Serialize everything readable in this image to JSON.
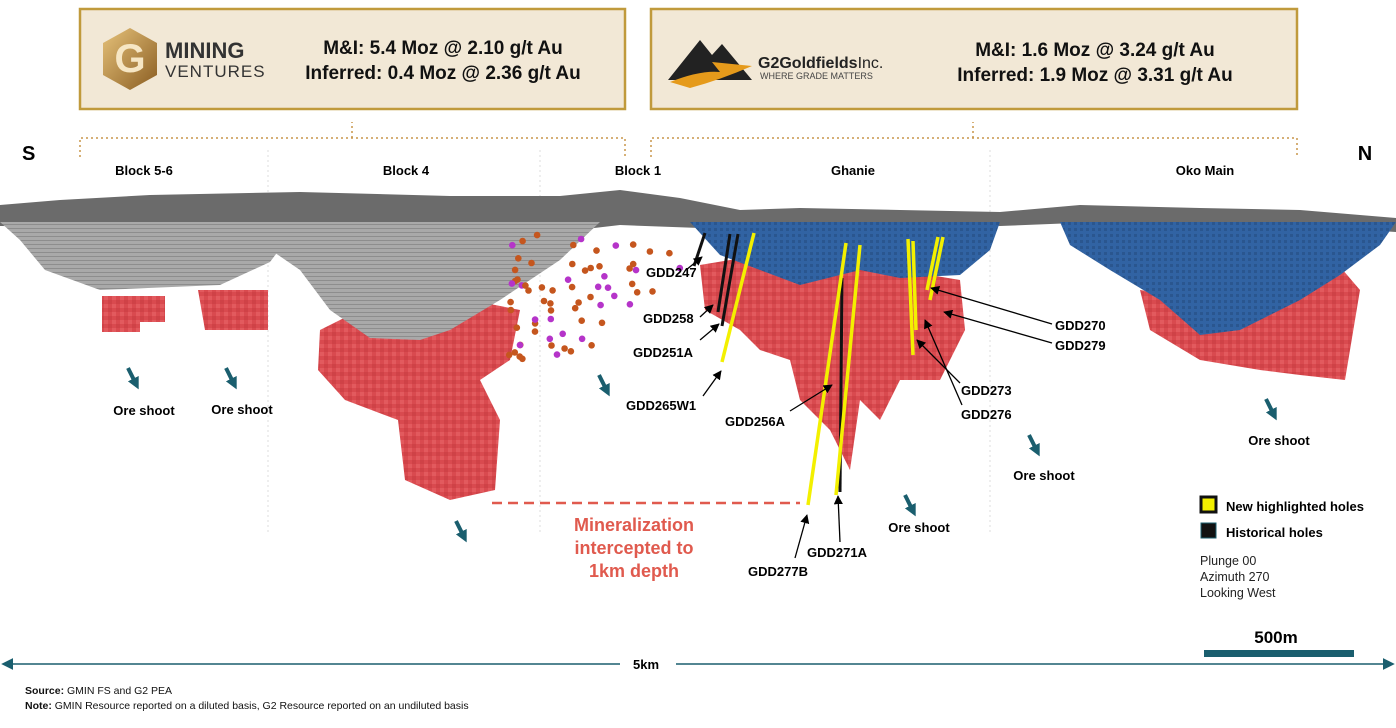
{
  "header": {
    "left": {
      "logo": {
        "mark": "G",
        "line1": "MINING",
        "line2": "VENTURES"
      },
      "mi": "M&I: 5.4 Moz @ 2.10 g/t Au",
      "inferred": "Inferred: 0.4 Moz @ 2.36 g/t Au"
    },
    "right": {
      "logo": {
        "name": "G2Goldfields",
        "suffix": "Inc.",
        "tagline": "WHERE GRADE MATTERS"
      },
      "mi": "M&I: 1.6 Moz @ 3.24 g/t Au",
      "inferred": "Inferred: 1.9 Moz @ 3.31 g/t Au"
    }
  },
  "directions": {
    "left": "S",
    "right": "N"
  },
  "sections": [
    "Block 5-6",
    "Block 4",
    "Block 1",
    "Ghanie",
    "Oko Main"
  ],
  "holes": [
    "GDD247",
    "GDD258",
    "GDD251A",
    "GDD265W1",
    "GDD256A",
    "GDD277B",
    "GDD271A",
    "GDD270",
    "GDD279",
    "GDD273",
    "GDD276"
  ],
  "ore_shoots": [
    "Ore shoot",
    "Ore shoot",
    "Ore shoot",
    "Ore shoot",
    "Ore shoot"
  ],
  "annotation": [
    "Mineralization",
    "intercepted to",
    "1km depth"
  ],
  "legend": [
    "New highlighted holes",
    "Historical holes"
  ],
  "view": [
    "Plunge 00",
    "Azimuth 270",
    "Looking West"
  ],
  "scale": {
    "bar": "500m",
    "width": "5km"
  },
  "footer": {
    "source_label": "Source:",
    "source": "GMIN FS and G2 PEA",
    "note_label": "Note:",
    "note": "GMIN Resource reported on a diluted basis, G2 Resource reported on an undiluted basis"
  }
}
